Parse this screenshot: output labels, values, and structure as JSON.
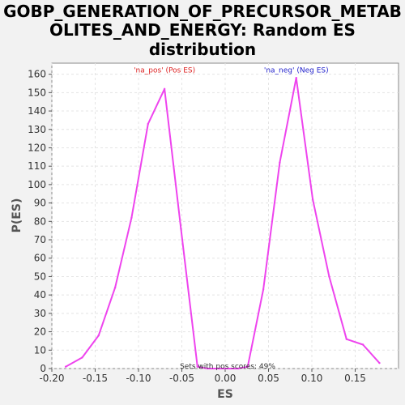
{
  "chart_data": {
    "type": "line",
    "title_lines": [
      "GOBP_GENERATION_OF_PRECURSOR_METAB",
      "OLITES_AND_ENERGY: Random ES",
      "distribution"
    ],
    "xlabel": "ES",
    "ylabel": "P(ES)",
    "xlim": [
      -0.2,
      0.2
    ],
    "ylim": [
      0,
      166
    ],
    "x_ticks": [
      -0.2,
      -0.15,
      -0.1,
      -0.05,
      0.0,
      0.05,
      0.1,
      0.15
    ],
    "x_tick_labels": [
      "-0.20",
      "-0.15",
      "-0.10",
      "-0.05",
      "0.00",
      "0.05",
      "0.10",
      "0.15"
    ],
    "y_ticks": [
      0,
      10,
      20,
      30,
      40,
      50,
      60,
      70,
      80,
      90,
      100,
      110,
      120,
      130,
      140,
      150,
      160
    ],
    "y_tick_labels": [
      "0",
      "10",
      "20",
      "30",
      "40",
      "50",
      "60",
      "70",
      "80",
      "90",
      "100",
      "110",
      "120",
      "130",
      "140",
      "150",
      "160"
    ],
    "grid": true,
    "series": [
      {
        "color": "#ee44ee",
        "x": [
          -0.184,
          -0.165,
          -0.146,
          -0.127,
          -0.108,
          -0.089,
          -0.07,
          -0.051,
          -0.032,
          -0.02,
          0.0,
          0.015,
          0.026,
          0.044,
          0.063,
          0.082,
          0.101,
          0.12,
          0.14,
          0.159,
          0.178
        ],
        "y": [
          1,
          6,
          18,
          44,
          82,
          133,
          152,
          76,
          1,
          0,
          0,
          0,
          1,
          43,
          112,
          158,
          92,
          50,
          16,
          13,
          3
        ]
      }
    ],
    "annotations": [
      {
        "text": "'na_pos' (Pos ES)",
        "x": -0.07,
        "y": 160,
        "color": "#dd2222"
      },
      {
        "text": "'na_neg' (Neg ES)",
        "x": 0.082,
        "y": 160,
        "color": "#2222cc"
      }
    ],
    "footer": "Sets with pos scores: 49%"
  }
}
